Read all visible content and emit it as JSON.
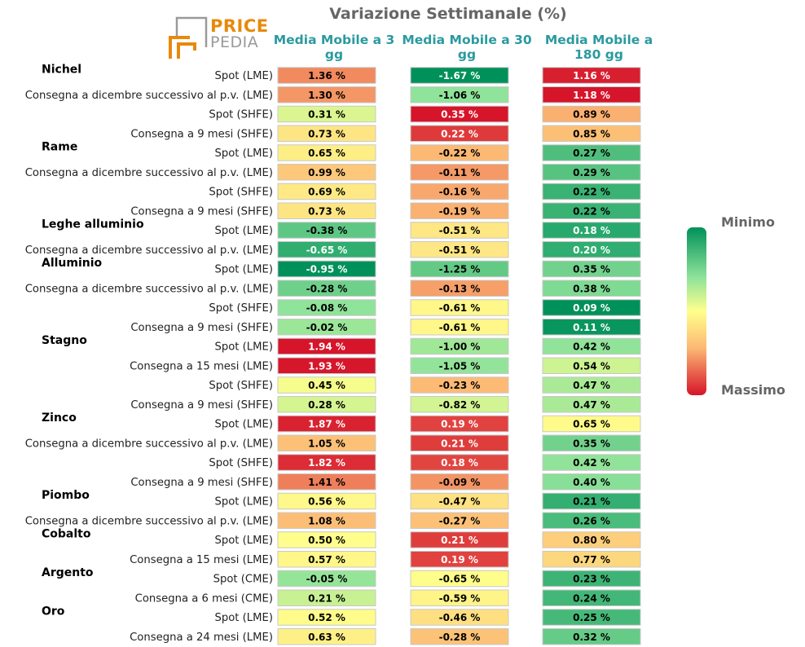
{
  "title": "Variazione Settimanale (%)",
  "logo": {
    "line1": "PRICE",
    "line2": "PEDIA"
  },
  "scale": {
    "min_label": "Minimo",
    "max_label": "Massimo",
    "colors": [
      "#00915a",
      "#8fe39a",
      "#ffff8c",
      "#fcb874",
      "#d6142a"
    ]
  },
  "columns": [
    "Media Mobile a 3 gg",
    "Media Mobile a 30 gg",
    "Media Mobile a 180 gg"
  ],
  "chart_data": {
    "type": "table",
    "title": "Variazione Settimanale (%)",
    "columns": [
      "Media Mobile a 3 gg",
      "Media Mobile a 30 gg",
      "Media Mobile a 180 gg"
    ],
    "groups": [
      {
        "name": "Nichel",
        "rows": [
          {
            "label": "Spot (LME)",
            "values": [
              1.36,
              -1.67,
              1.16
            ]
          },
          {
            "label": "Consegna a dicembre successivo al p.v. (LME)",
            "values": [
              1.3,
              -1.06,
              1.18
            ]
          },
          {
            "label": "Spot (SHFE)",
            "values": [
              0.31,
              0.35,
              0.89
            ]
          },
          {
            "label": "Consegna a 9 mesi (SHFE)",
            "values": [
              0.73,
              0.22,
              0.85
            ]
          }
        ]
      },
      {
        "name": "Rame",
        "rows": [
          {
            "label": "Spot (LME)",
            "values": [
              0.65,
              -0.22,
              0.27
            ]
          },
          {
            "label": "Consegna a dicembre successivo al p.v. (LME)",
            "values": [
              0.99,
              -0.11,
              0.29
            ]
          },
          {
            "label": "Spot (SHFE)",
            "values": [
              0.69,
              -0.16,
              0.22
            ]
          },
          {
            "label": "Consegna a 9 mesi (SHFE)",
            "values": [
              0.73,
              -0.19,
              0.22
            ]
          }
        ]
      },
      {
        "name": "Leghe alluminio",
        "rows": [
          {
            "label": "Spot (LME)",
            "values": [
              -0.38,
              -0.51,
              0.18
            ]
          },
          {
            "label": "Consegna a dicembre successivo al p.v. (LME)",
            "values": [
              -0.65,
              -0.51,
              0.2
            ]
          }
        ]
      },
      {
        "name": "Alluminio",
        "rows": [
          {
            "label": "Spot (LME)",
            "values": [
              -0.95,
              -1.25,
              0.35
            ]
          },
          {
            "label": "Consegna a dicembre successivo al p.v. (LME)",
            "values": [
              -0.28,
              -0.13,
              0.38
            ]
          },
          {
            "label": "Spot (SHFE)",
            "values": [
              -0.08,
              -0.61,
              0.09
            ]
          },
          {
            "label": "Consegna a 9 mesi (SHFE)",
            "values": [
              -0.02,
              -0.61,
              0.11
            ]
          }
        ]
      },
      {
        "name": "Stagno",
        "rows": [
          {
            "label": "Spot (LME)",
            "values": [
              1.94,
              -1.0,
              0.42
            ]
          },
          {
            "label": "Consegna a 15 mesi (LME)",
            "values": [
              1.93,
              -1.05,
              0.54
            ]
          },
          {
            "label": "Spot (SHFE)",
            "values": [
              0.45,
              -0.23,
              0.47
            ]
          },
          {
            "label": "Consegna a 9 mesi (SHFE)",
            "values": [
              0.28,
              -0.82,
              0.47
            ]
          }
        ]
      },
      {
        "name": "Zinco",
        "rows": [
          {
            "label": "Spot (LME)",
            "values": [
              1.87,
              0.19,
              0.65
            ]
          },
          {
            "label": "Consegna a dicembre successivo al p.v. (LME)",
            "values": [
              1.05,
              0.21,
              0.35
            ]
          },
          {
            "label": "Spot (SHFE)",
            "values": [
              1.82,
              0.18,
              0.42
            ]
          },
          {
            "label": "Consegna a 9 mesi (SHFE)",
            "values": [
              1.41,
              -0.09,
              0.4
            ]
          }
        ]
      },
      {
        "name": "Piombo",
        "rows": [
          {
            "label": "Spot (LME)",
            "values": [
              0.56,
              -0.47,
              0.21
            ]
          },
          {
            "label": "Consegna a dicembre successivo al p.v. (LME)",
            "values": [
              1.08,
              -0.27,
              0.26
            ]
          }
        ]
      },
      {
        "name": "Cobalto",
        "rows": [
          {
            "label": "Spot (LME)",
            "values": [
              0.5,
              0.21,
              0.8
            ]
          },
          {
            "label": "Consegna a 15 mesi (LME)",
            "values": [
              0.57,
              0.19,
              0.77
            ]
          }
        ]
      },
      {
        "name": "Argento",
        "rows": [
          {
            "label": "Spot (CME)",
            "values": [
              -0.05,
              -0.65,
              0.23
            ]
          },
          {
            "label": "Consegna a 6 mesi (CME)",
            "values": [
              0.21,
              -0.59,
              0.24
            ]
          }
        ]
      },
      {
        "name": "Oro",
        "rows": [
          {
            "label": "Spot (LME)",
            "values": [
              0.52,
              -0.46,
              0.25
            ]
          },
          {
            "label": "Consegna a 24 mesi (LME)",
            "values": [
              0.63,
              -0.28,
              0.32
            ]
          }
        ]
      }
    ]
  }
}
